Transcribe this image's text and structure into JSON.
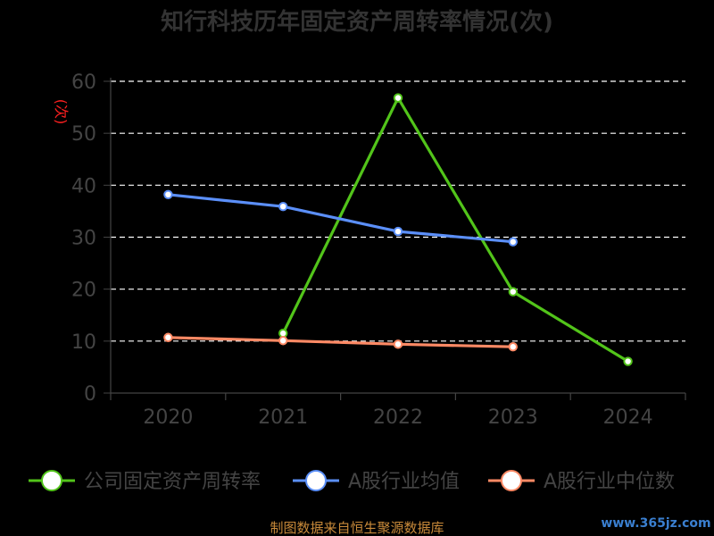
{
  "chart_data": {
    "type": "line",
    "title": "知行科技历年固定资产周转率情况(次)",
    "ylabel": "(次)",
    "xlabel": "",
    "categories": [
      "2020",
      "2021",
      "2022",
      "2023",
      "2024"
    ],
    "ylim": [
      0,
      60
    ],
    "yticks": [
      0,
      10,
      20,
      30,
      40,
      50,
      60
    ],
    "grid": true,
    "legend_position": "bottom",
    "series": [
      {
        "name": "公司固定资产周转率",
        "color": "#52c41a",
        "values": [
          null,
          11.5,
          56.8,
          19.5,
          6.1
        ]
      },
      {
        "name": "A股行业均值",
        "color": "#5b8ff9",
        "values": [
          38.2,
          35.9,
          31.1,
          29.1,
          null
        ]
      },
      {
        "name": "A股行业中位数",
        "color": "#ff8a65",
        "values": [
          10.7,
          10.1,
          9.4,
          8.9,
          null
        ]
      }
    ]
  },
  "footer": {
    "source": "制图数据来自恒生聚源数据库",
    "watermark": "www.365jz.com"
  }
}
